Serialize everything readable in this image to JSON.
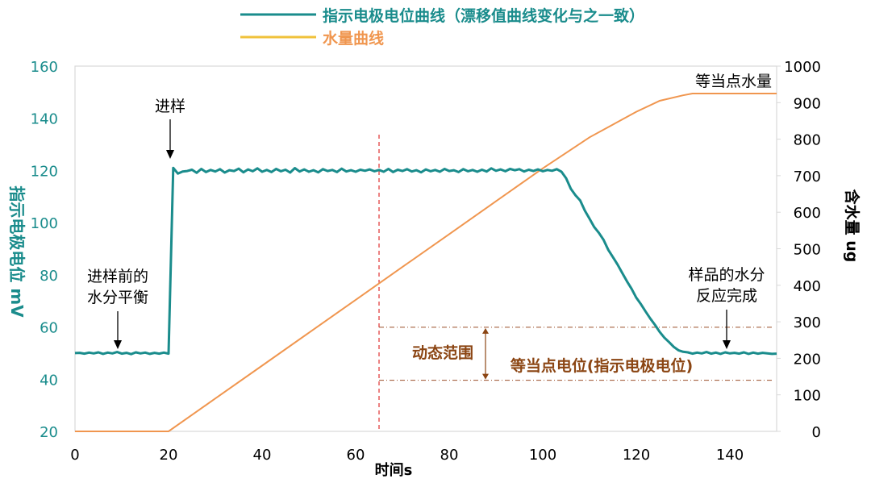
{
  "chart_data": {
    "type": "line",
    "xlabel": "时间s",
    "ylabel_left": "指示电极电位 mV",
    "ylabel_right": "含水量 ug",
    "x_range": [
      0,
      150
    ],
    "x_ticks": [
      0,
      20,
      40,
      60,
      80,
      100,
      120,
      140
    ],
    "y_left_range": [
      20,
      160
    ],
    "y_left_ticks": [
      20,
      40,
      60,
      80,
      100,
      120,
      140,
      160
    ],
    "y_right_range": [
      0,
      1000
    ],
    "y_right_ticks": [
      0,
      100,
      200,
      300,
      400,
      500,
      600,
      700,
      800,
      900,
      1000
    ],
    "legend_position": "top-center",
    "series": [
      {
        "name": "指示电极电位曲线（漂移值曲线变化与之一致）",
        "axis": "left",
        "color": "#1a8c8c",
        "points": [
          [
            0,
            50
          ],
          [
            1,
            50.1
          ],
          [
            2,
            49.8
          ],
          [
            3,
            50.2
          ],
          [
            4,
            49.9
          ],
          [
            5,
            50.3
          ],
          [
            6,
            49.7
          ],
          [
            7,
            50.2
          ],
          [
            8,
            49.9
          ],
          [
            9,
            50.4
          ],
          [
            10,
            49.8
          ],
          [
            11,
            50.1
          ],
          [
            12,
            49.6
          ],
          [
            13,
            50.3
          ],
          [
            14,
            49.9
          ],
          [
            15,
            50.2
          ],
          [
            16,
            49.7
          ],
          [
            17,
            50.1
          ],
          [
            18,
            49.8
          ],
          [
            19,
            50.2
          ],
          [
            20,
            49.8
          ],
          [
            21,
            121
          ],
          [
            22,
            118.8
          ],
          [
            23,
            119.6
          ],
          [
            24,
            119.8
          ],
          [
            25,
            120.3
          ],
          [
            26,
            119.1
          ],
          [
            27,
            120.6
          ],
          [
            28,
            119.4
          ],
          [
            29,
            120.2
          ],
          [
            30,
            119.6
          ],
          [
            31,
            120.5
          ],
          [
            32,
            119.2
          ],
          [
            33,
            120.1
          ],
          [
            34,
            119.8
          ],
          [
            35,
            120.7
          ],
          [
            36,
            119.3
          ],
          [
            37,
            120.4
          ],
          [
            38,
            119.7
          ],
          [
            39,
            120.8
          ],
          [
            40,
            119.5
          ],
          [
            41,
            120.2
          ],
          [
            42,
            119.4
          ],
          [
            43,
            120.6
          ],
          [
            44,
            119.7
          ],
          [
            45,
            120.3
          ],
          [
            46,
            119.2
          ],
          [
            47,
            120.9
          ],
          [
            48,
            119.6
          ],
          [
            49,
            120.4
          ],
          [
            50,
            119.5
          ],
          [
            51,
            120.1
          ],
          [
            52,
            119.3
          ],
          [
            53,
            120.5
          ],
          [
            54,
            119.8
          ],
          [
            55,
            120.2
          ],
          [
            56,
            119.4
          ],
          [
            57,
            120.7
          ],
          [
            58,
            119.6
          ],
          [
            59,
            120.1
          ],
          [
            60,
            119.5
          ],
          [
            61,
            120.3
          ],
          [
            62,
            119.9
          ],
          [
            63,
            120.4
          ],
          [
            64,
            119.7
          ],
          [
            65,
            120.2
          ],
          [
            66,
            119.5
          ],
          [
            67,
            120.6
          ],
          [
            68,
            119.4
          ],
          [
            69,
            120.3
          ],
          [
            70,
            119.8
          ],
          [
            71,
            120.5
          ],
          [
            72,
            119.6
          ],
          [
            73,
            120.1
          ],
          [
            74,
            119.3
          ],
          [
            75,
            120.4
          ],
          [
            76,
            119.7
          ],
          [
            77,
            120.2
          ],
          [
            78,
            119.5
          ],
          [
            79,
            120.6
          ],
          [
            80,
            119.8
          ],
          [
            81,
            120.1
          ],
          [
            82,
            119.4
          ],
          [
            83,
            120.5
          ],
          [
            84,
            119.7
          ],
          [
            85,
            120.2
          ],
          [
            86,
            119.5
          ],
          [
            87,
            120.3
          ],
          [
            88,
            119.6
          ],
          [
            89,
            120.8
          ],
          [
            90,
            119.9
          ],
          [
            91,
            120.4
          ],
          [
            92,
            119.7
          ],
          [
            93,
            120.6
          ],
          [
            94,
            120.1
          ],
          [
            95,
            120.5
          ],
          [
            96,
            119.6
          ],
          [
            97,
            120.3
          ],
          [
            98,
            119.8
          ],
          [
            99,
            120.4
          ],
          [
            100,
            119.7
          ],
          [
            101,
            120.2
          ],
          [
            102,
            119.9
          ],
          [
            103,
            120.5
          ],
          [
            104,
            119.5
          ],
          [
            105,
            117
          ],
          [
            106,
            113
          ],
          [
            107,
            110.5
          ],
          [
            108,
            108.5
          ],
          [
            109,
            104.6
          ],
          [
            110,
            101.5
          ],
          [
            111,
            98.3
          ],
          [
            112,
            96.1
          ],
          [
            113,
            93.4
          ],
          [
            114,
            89.6
          ],
          [
            115,
            86.8
          ],
          [
            116,
            83.9
          ],
          [
            117,
            80.7
          ],
          [
            118,
            77.5
          ],
          [
            119,
            74.6
          ],
          [
            120,
            71.2
          ],
          [
            121,
            68.7
          ],
          [
            122,
            65.9
          ],
          [
            123,
            63.2
          ],
          [
            124,
            60.8
          ],
          [
            125,
            58.1
          ],
          [
            126,
            55.9
          ],
          [
            127,
            54.2
          ],
          [
            128,
            52.4
          ],
          [
            129,
            51.1
          ],
          [
            130,
            50.5
          ],
          [
            131,
            50.3
          ],
          [
            132,
            49.8
          ],
          [
            133,
            50.2
          ],
          [
            134,
            49.9
          ],
          [
            135,
            50.4
          ],
          [
            136,
            49.8
          ],
          [
            137,
            50.2
          ],
          [
            138,
            49.7
          ],
          [
            139,
            50.3
          ],
          [
            140,
            49.9
          ],
          [
            141,
            50.1
          ],
          [
            142,
            49.8
          ],
          [
            143,
            50.3
          ],
          [
            144,
            49.7
          ],
          [
            145,
            50.2
          ],
          [
            146,
            49.8
          ],
          [
            147,
            50.1
          ],
          [
            148,
            49.9
          ],
          [
            149,
            49.7
          ],
          [
            150,
            49.8
          ]
        ]
      },
      {
        "name": "水量曲线",
        "axis": "right",
        "color": "#f0964f",
        "points": [
          [
            0,
            0
          ],
          [
            20,
            0
          ],
          [
            30,
            90
          ],
          [
            40,
            180
          ],
          [
            50,
            270
          ],
          [
            60,
            360
          ],
          [
            70,
            450
          ],
          [
            80,
            540
          ],
          [
            90,
            630
          ],
          [
            100,
            720
          ],
          [
            110,
            805
          ],
          [
            115,
            840
          ],
          [
            120,
            875
          ],
          [
            125,
            905
          ],
          [
            130,
            920
          ],
          [
            132,
            925
          ],
          [
            140,
            925
          ],
          [
            150,
            925
          ]
        ]
      }
    ],
    "annotations": {
      "sample_in": "进样",
      "pre_balance_line1": "进样前的",
      "pre_balance_line2": "水分平衡",
      "reaction_done_line1": "样品的水分",
      "reaction_done_line2": "反应完成",
      "endpoint_water": "等当点水量",
      "dynamic_range": "动态范围",
      "endpoint_potential": "等当点电位(指示电极电位)"
    },
    "reference_lines": {
      "vertical_x": 65,
      "dynamic_upper_right_value": 285,
      "dynamic_lower_right_value": 140
    }
  }
}
